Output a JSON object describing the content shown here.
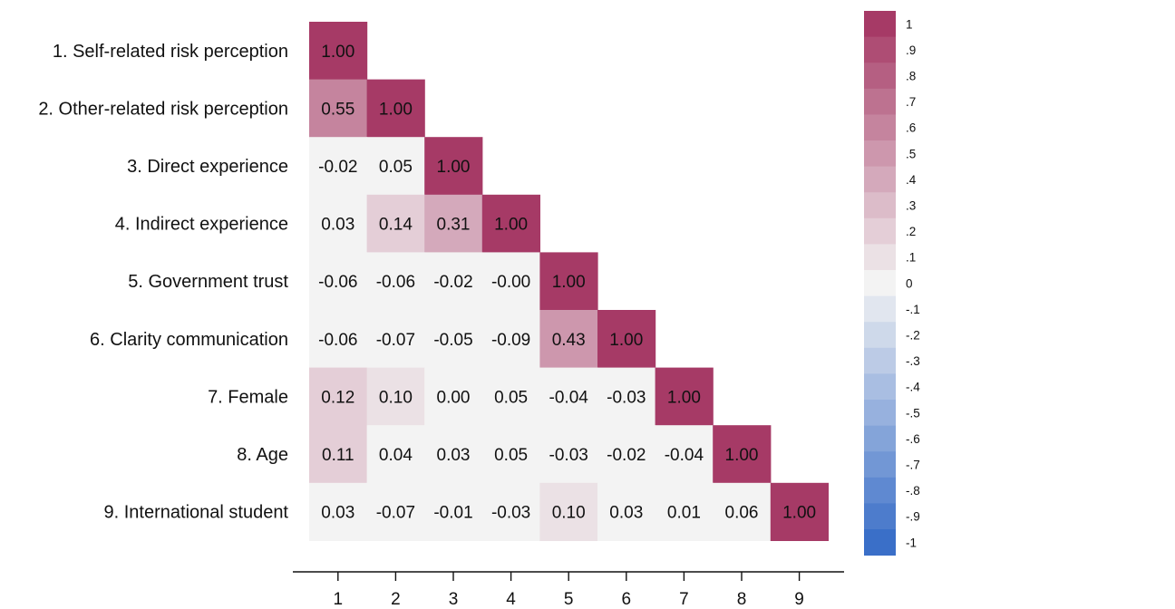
{
  "chart_data": {
    "type": "heatmap",
    "title": "",
    "xlabel": "",
    "ylabel": "",
    "row_labels": [
      "1. Self-related risk perception",
      "2. Other-related risk perception",
      "3. Direct experience",
      "4. Indirect experience",
      "5. Government trust",
      "6. Clarity communication",
      "7. Female",
      "8. Age",
      "9. International student"
    ],
    "column_labels": [
      "1",
      "2",
      "3",
      "4",
      "5",
      "6",
      "7",
      "8",
      "9"
    ],
    "values": [
      [
        "1.00"
      ],
      [
        "0.55",
        "1.00"
      ],
      [
        "-0.02",
        "0.05",
        "1.00"
      ],
      [
        "0.03",
        "0.14",
        "0.31",
        "1.00"
      ],
      [
        "-0.06",
        "-0.06",
        "-0.02",
        "-0.00",
        "1.00"
      ],
      [
        "-0.06",
        "-0.07",
        "-0.05",
        "-0.09",
        "0.43",
        "1.00"
      ],
      [
        "0.12",
        "0.10",
        "0.00",
        "0.05",
        "-0.04",
        "-0.03",
        "1.00"
      ],
      [
        "0.11",
        "0.04",
        "0.03",
        "0.05",
        "-0.03",
        "-0.02",
        "-0.04",
        "1.00"
      ],
      [
        "0.03",
        "-0.07",
        "-0.01",
        "-0.03",
        "0.10",
        "0.03",
        "0.01",
        "0.06",
        "1.00"
      ]
    ],
    "legend": {
      "type": "discrete colorbar",
      "placement": "right",
      "range": [
        -1,
        1
      ],
      "labels": [
        "1",
        ".9",
        ".8",
        ".7",
        ".6",
        ".5",
        ".4",
        ".3",
        ".2",
        ".1",
        "0",
        "-.1",
        "-.2",
        "-.3",
        "-.4",
        "-.5",
        "-.6",
        "-.7",
        "-.8",
        "-.9",
        "-1"
      ]
    },
    "colors": {
      "positive_max": "#a63a66",
      "neutral": "#f3f3f3",
      "negative_max": "#3a6fc8"
    },
    "grid": false
  }
}
